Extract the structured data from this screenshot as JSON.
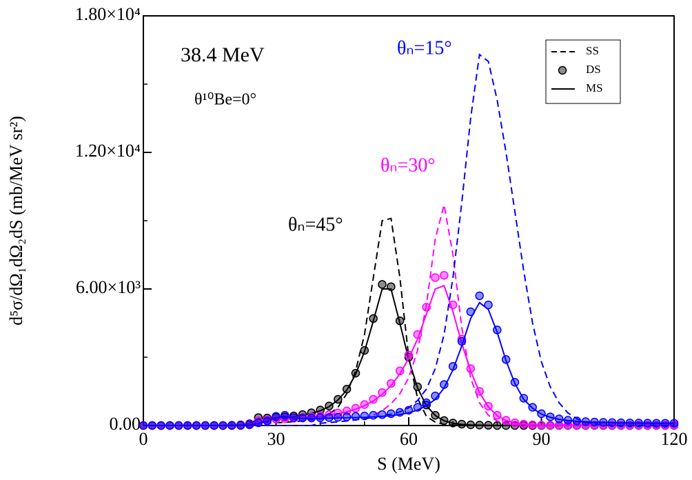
{
  "chart_data": {
    "type": "line",
    "xlabel": "S (MeV)",
    "ylabel": "d⁵σ/dΩ₁dΩ₂dS  (mb/MeV sr²)",
    "xlim": [
      0,
      120
    ],
    "ylim": [
      0,
      18000
    ],
    "xticks": [
      0,
      30,
      60,
      90,
      120
    ],
    "xminorticks": [
      10,
      20,
      40,
      50,
      70,
      80,
      100,
      110
    ],
    "yticks": [
      {
        "value": 0,
        "label": "0.00"
      },
      {
        "value": 6000,
        "label": "6.00×10³"
      },
      {
        "value": 12000,
        "label": "1.20×10⁴"
      },
      {
        "value": 18000,
        "label": "1.80×10⁴"
      }
    ],
    "yminorticks": [
      3000,
      9000,
      15000
    ],
    "legend_position": "upper right",
    "annotations": [
      "38.4 MeV",
      "θ¹⁰Be=0°",
      "θₙ=15°",
      "θₙ=30°",
      "θₙ=45°"
    ],
    "x": [
      0,
      2,
      4,
      6,
      8,
      10,
      12,
      14,
      16,
      18,
      20,
      22,
      24,
      26,
      28,
      30,
      32,
      34,
      36,
      38,
      40,
      42,
      44,
      46,
      48,
      50,
      52,
      54,
      56,
      58,
      60,
      62,
      64,
      66,
      68,
      70,
      72,
      74,
      76,
      78,
      80,
      82,
      84,
      86,
      88,
      90,
      92,
      94,
      96,
      98,
      100,
      102,
      104,
      106,
      108,
      110,
      112,
      114,
      116,
      118,
      120
    ],
    "series": [
      {
        "name": "SS",
        "style": "dashed",
        "color": "#000000",
        "values": [
          0,
          0,
          0,
          0,
          0,
          0,
          0,
          0,
          0,
          0,
          0,
          0,
          20,
          100,
          110,
          120,
          140,
          170,
          210,
          260,
          300,
          500,
          800,
          1400,
          2400,
          4000,
          6500,
          9000,
          9100,
          6500,
          3000,
          1200,
          400,
          150,
          50,
          20,
          10,
          0,
          0,
          0,
          0,
          0,
          0,
          0,
          0,
          0,
          0,
          0,
          0,
          0,
          0,
          0,
          0,
          0,
          0,
          0,
          0,
          0,
          0,
          0,
          0
        ]
      },
      {
        "name": "DS",
        "style": "markers",
        "color": "#000000",
        "values": [
          0,
          0,
          0,
          0,
          0,
          0,
          0,
          0,
          0,
          0,
          10,
          30,
          80,
          350,
          330,
          360,
          380,
          420,
          480,
          560,
          680,
          860,
          1150,
          1600,
          2300,
          3300,
          4700,
          6200,
          6100,
          4600,
          3000,
          1700,
          900,
          450,
          220,
          110,
          60,
          30,
          20,
          10,
          0,
          0,
          0,
          0,
          0,
          0,
          0,
          0,
          0,
          0,
          0,
          0,
          0,
          0,
          0,
          0,
          0,
          0,
          0,
          0,
          0
        ]
      },
      {
        "name": "MS",
        "style": "solid",
        "color": "#000000",
        "values": [
          0,
          0,
          0,
          0,
          0,
          0,
          0,
          0,
          0,
          0,
          10,
          30,
          80,
          300,
          300,
          330,
          350,
          390,
          450,
          530,
          650,
          830,
          1120,
          1560,
          2250,
          3250,
          4600,
          6000,
          6000,
          4500,
          2900,
          1650,
          870,
          440,
          210,
          100,
          50,
          25,
          15,
          8,
          0,
          0,
          0,
          0,
          0,
          0,
          0,
          0,
          0,
          0,
          0,
          0,
          0,
          0,
          0,
          0,
          0,
          0,
          0,
          0,
          0
        ]
      },
      {
        "name": "SS",
        "style": "dashed",
        "color": "#ff00ff",
        "values": [
          0,
          0,
          0,
          0,
          0,
          0,
          0,
          0,
          0,
          0,
          0,
          0,
          0,
          0,
          0,
          0,
          0,
          0,
          0,
          0,
          100,
          130,
          170,
          210,
          250,
          300,
          450,
          650,
          950,
          1400,
          2100,
          3300,
          5300,
          8200,
          9700,
          7500,
          4300,
          2100,
          1000,
          450,
          200,
          90,
          40,
          15,
          0,
          0,
          0,
          0,
          0,
          0,
          0,
          0,
          0,
          0,
          0,
          0,
          0,
          0,
          0,
          0,
          0
        ]
      },
      {
        "name": "DS",
        "style": "markers",
        "color": "#ff00ff",
        "values": [
          0,
          0,
          0,
          0,
          0,
          0,
          0,
          0,
          0,
          0,
          0,
          10,
          50,
          200,
          250,
          280,
          300,
          320,
          350,
          380,
          420,
          480,
          550,
          640,
          760,
          920,
          1150,
          1450,
          1850,
          2400,
          3100,
          4000,
          5200,
          6500,
          6600,
          5300,
          3800,
          2500,
          1500,
          850,
          450,
          230,
          120,
          60,
          30,
          15,
          10,
          10,
          10,
          10,
          10,
          10,
          10,
          10,
          10,
          10,
          10,
          10,
          10,
          10,
          10
        ]
      },
      {
        "name": "MS",
        "style": "solid",
        "color": "#ff00ff",
        "values": [
          0,
          0,
          0,
          0,
          0,
          0,
          0,
          0,
          0,
          0,
          0,
          10,
          40,
          180,
          230,
          260,
          280,
          300,
          330,
          360,
          400,
          450,
          520,
          600,
          720,
          870,
          1080,
          1370,
          1750,
          2270,
          2950,
          3800,
          4900,
          6000,
          6150,
          5000,
          3600,
          2400,
          1450,
          820,
          430,
          220,
          110,
          55,
          28,
          14,
          10,
          10,
          10,
          10,
          10,
          10,
          10,
          10,
          10,
          10,
          10,
          10,
          10,
          10,
          10
        ]
      },
      {
        "name": "SS",
        "style": "dashed",
        "color": "#0000ff",
        "values": [
          0,
          0,
          0,
          0,
          0,
          0,
          0,
          0,
          0,
          0,
          0,
          0,
          0,
          0,
          0,
          0,
          0,
          0,
          0,
          0,
          100,
          130,
          160,
          200,
          250,
          300,
          350,
          420,
          500,
          600,
          780,
          1100,
          1600,
          2500,
          4000,
          6500,
          9800,
          13500,
          16300,
          16000,
          14300,
          12000,
          9400,
          6800,
          4500,
          2800,
          1700,
          1000,
          550,
          300,
          150,
          70,
          30,
          0,
          0,
          0,
          0,
          0,
          0,
          0,
          0
        ]
      },
      {
        "name": "DS",
        "style": "markers",
        "color": "#0000ff",
        "values": [
          0,
          0,
          0,
          0,
          0,
          0,
          0,
          0,
          0,
          0,
          0,
          0,
          30,
          120,
          200,
          400,
          450,
          350,
          330,
          330,
          340,
          350,
          360,
          380,
          400,
          420,
          450,
          480,
          520,
          580,
          670,
          800,
          1000,
          1300,
          1800,
          2600,
          3700,
          5000,
          5700,
          5300,
          4200,
          2900,
          1900,
          1200,
          800,
          520,
          380,
          290,
          230,
          200,
          170,
          150,
          140,
          130,
          120,
          115,
          110,
          105,
          100,
          100,
          100
        ]
      },
      {
        "name": "MS",
        "style": "solid",
        "color": "#0000ff",
        "values": [
          0,
          0,
          0,
          0,
          0,
          0,
          0,
          0,
          0,
          0,
          0,
          0,
          20,
          100,
          180,
          350,
          400,
          320,
          300,
          300,
          310,
          320,
          330,
          340,
          350,
          360,
          380,
          400,
          430,
          480,
          560,
          680,
          870,
          1150,
          1650,
          2450,
          3500,
          4700,
          5400,
          5100,
          4100,
          2850,
          1850,
          1150,
          760,
          500,
          360,
          270,
          220,
          190,
          160,
          145,
          135,
          125,
          115,
          110,
          105,
          100,
          95,
          95,
          95
        ]
      }
    ]
  }
}
